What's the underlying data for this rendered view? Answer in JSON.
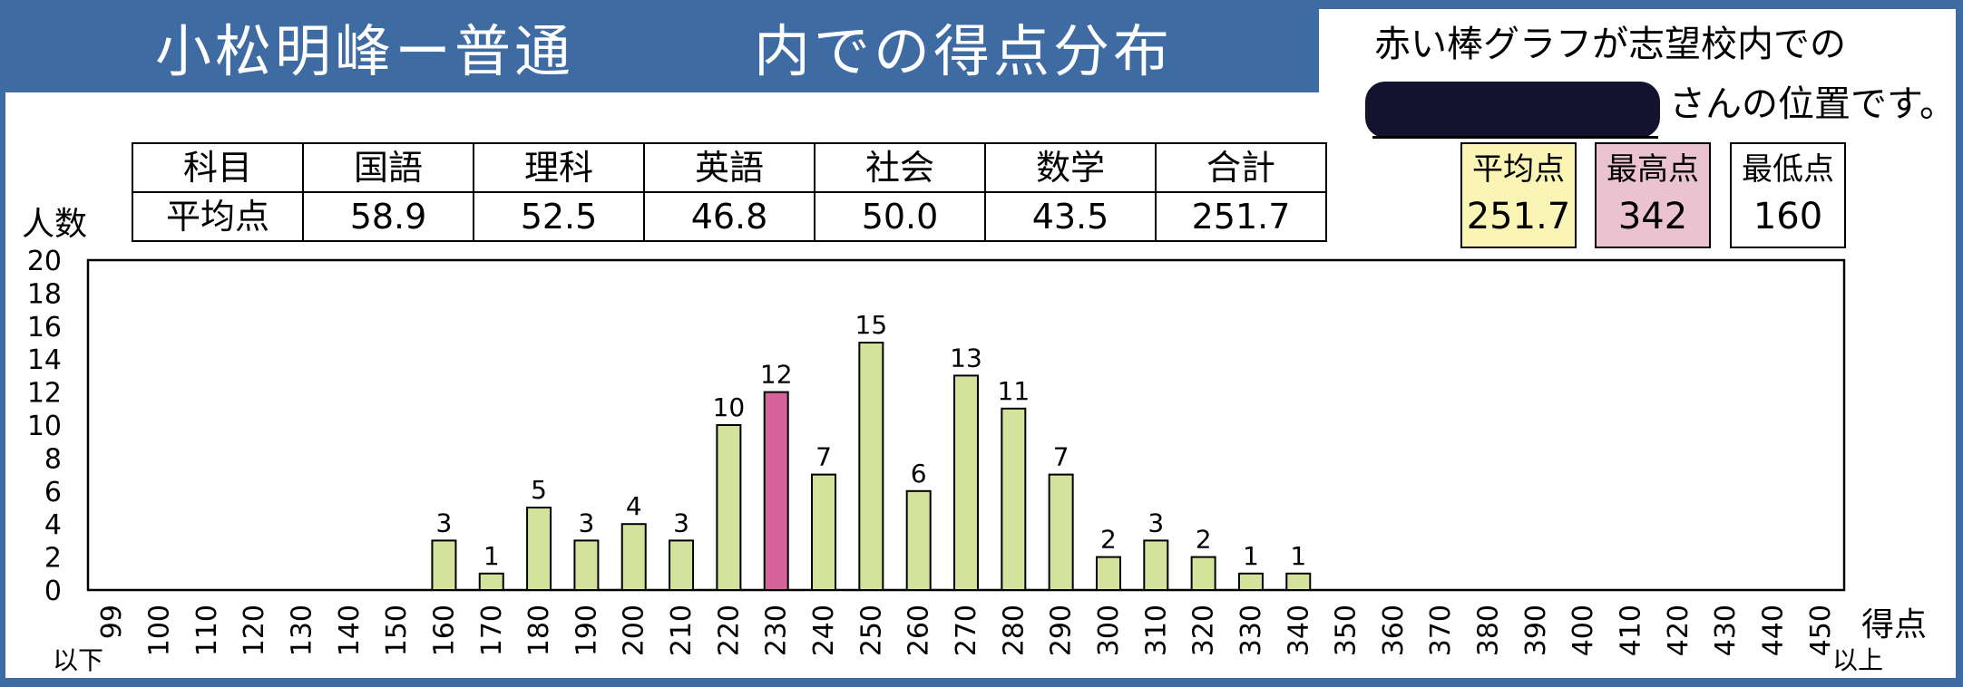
{
  "title": "小松明峰ー普通　　　内での得点分布",
  "note": {
    "line1": "赤い棒グラフが志望校内での",
    "line2": "さんの位置です。"
  },
  "table": {
    "header": [
      "科目",
      "国語",
      "理科",
      "英語",
      "社会",
      "数学",
      "合計"
    ],
    "row": [
      "平均点",
      "58.9",
      "52.5",
      "46.8",
      "50.0",
      "43.5",
      "251.7"
    ]
  },
  "summary": {
    "average": {
      "label": "平均点",
      "value": "251.7"
    },
    "max": {
      "label": "最高点",
      "value": "342"
    },
    "min": {
      "label": "最低点",
      "value": "160"
    }
  },
  "colors": {
    "frame": "#3f6ba3",
    "bar": "#d4e39b",
    "bar_highlight": "#d4649a",
    "average_box": "#fbf5b5",
    "max_box": "#ebc2d0"
  },
  "chart_data": {
    "type": "bar",
    "ylabel": "人数",
    "xlabel": "得点",
    "ylim": [
      0,
      20
    ],
    "yticks": [
      0,
      2,
      4,
      6,
      8,
      10,
      12,
      14,
      16,
      18,
      20
    ],
    "categories": [
      "99",
      "100",
      "110",
      "120",
      "130",
      "140",
      "150",
      "160",
      "170",
      "180",
      "190",
      "200",
      "210",
      "220",
      "230",
      "240",
      "250",
      "260",
      "270",
      "280",
      "290",
      "300",
      "310",
      "320",
      "330",
      "340",
      "350",
      "360",
      "370",
      "380",
      "390",
      "400",
      "410",
      "420",
      "430",
      "440",
      "450"
    ],
    "values": [
      0,
      0,
      0,
      0,
      0,
      0,
      0,
      3,
      1,
      5,
      3,
      4,
      3,
      10,
      12,
      7,
      15,
      6,
      13,
      11,
      7,
      2,
      3,
      2,
      1,
      1,
      0,
      0,
      0,
      0,
      0,
      0,
      0,
      0,
      0,
      0,
      0
    ],
    "highlight_category": "230",
    "below_label": "以下",
    "above_label": "以上"
  }
}
